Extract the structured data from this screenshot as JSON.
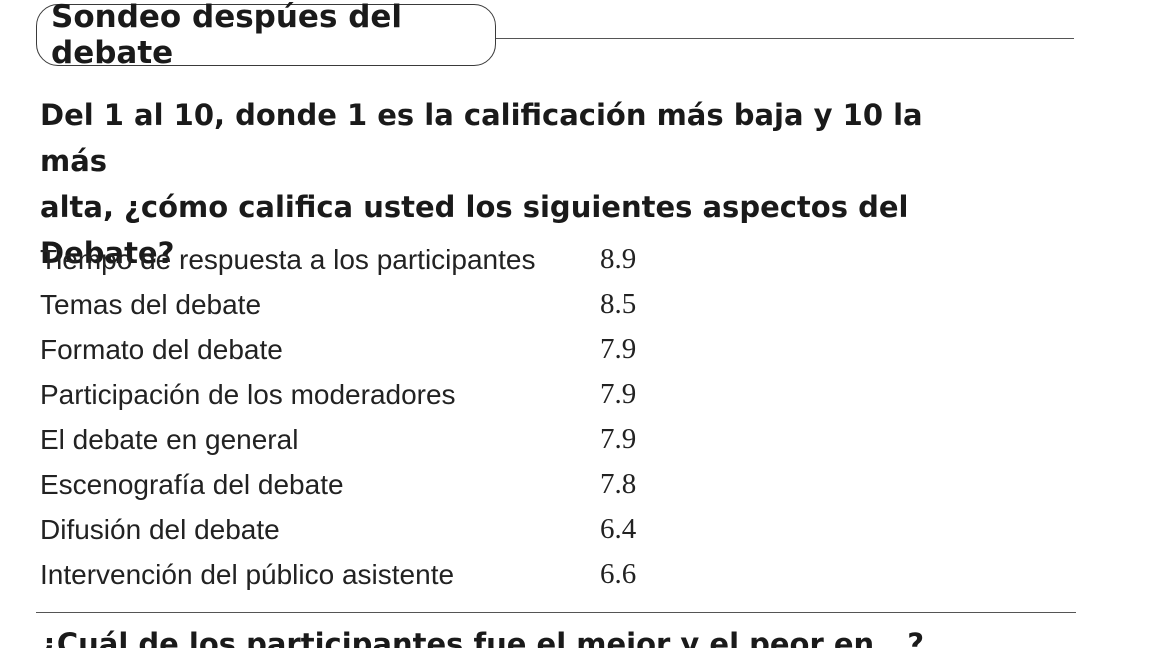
{
  "header": {
    "title": "Sondeo despúes del debate"
  },
  "question": {
    "line1": "Del 1 al 10, donde 1 es la calificación más baja y 10 la más",
    "line2": "alta, ¿cómo califica usted los siguientes aspectos del",
    "line3": "Debate?"
  },
  "ratings": [
    {
      "label": "Tiempo de respuesta a los participantes",
      "value": "8.9"
    },
    {
      "label": "Temas del debate",
      "value": "8.5"
    },
    {
      "label": "Formato del debate",
      "value": "7.9"
    },
    {
      "label": "Participación de los moderadores",
      "value": "7.9"
    },
    {
      "label": "El debate en general",
      "value": "7.9"
    },
    {
      "label": "Escenografía del debate",
      "value": "7.8"
    },
    {
      "label": "Difusión del debate",
      "value": "6.4"
    },
    {
      "label": "Intervención del público asistente",
      "value": "6.6"
    }
  ],
  "next_question": "¿Cuál de los participantes fue el mejor y el peor en...?"
}
